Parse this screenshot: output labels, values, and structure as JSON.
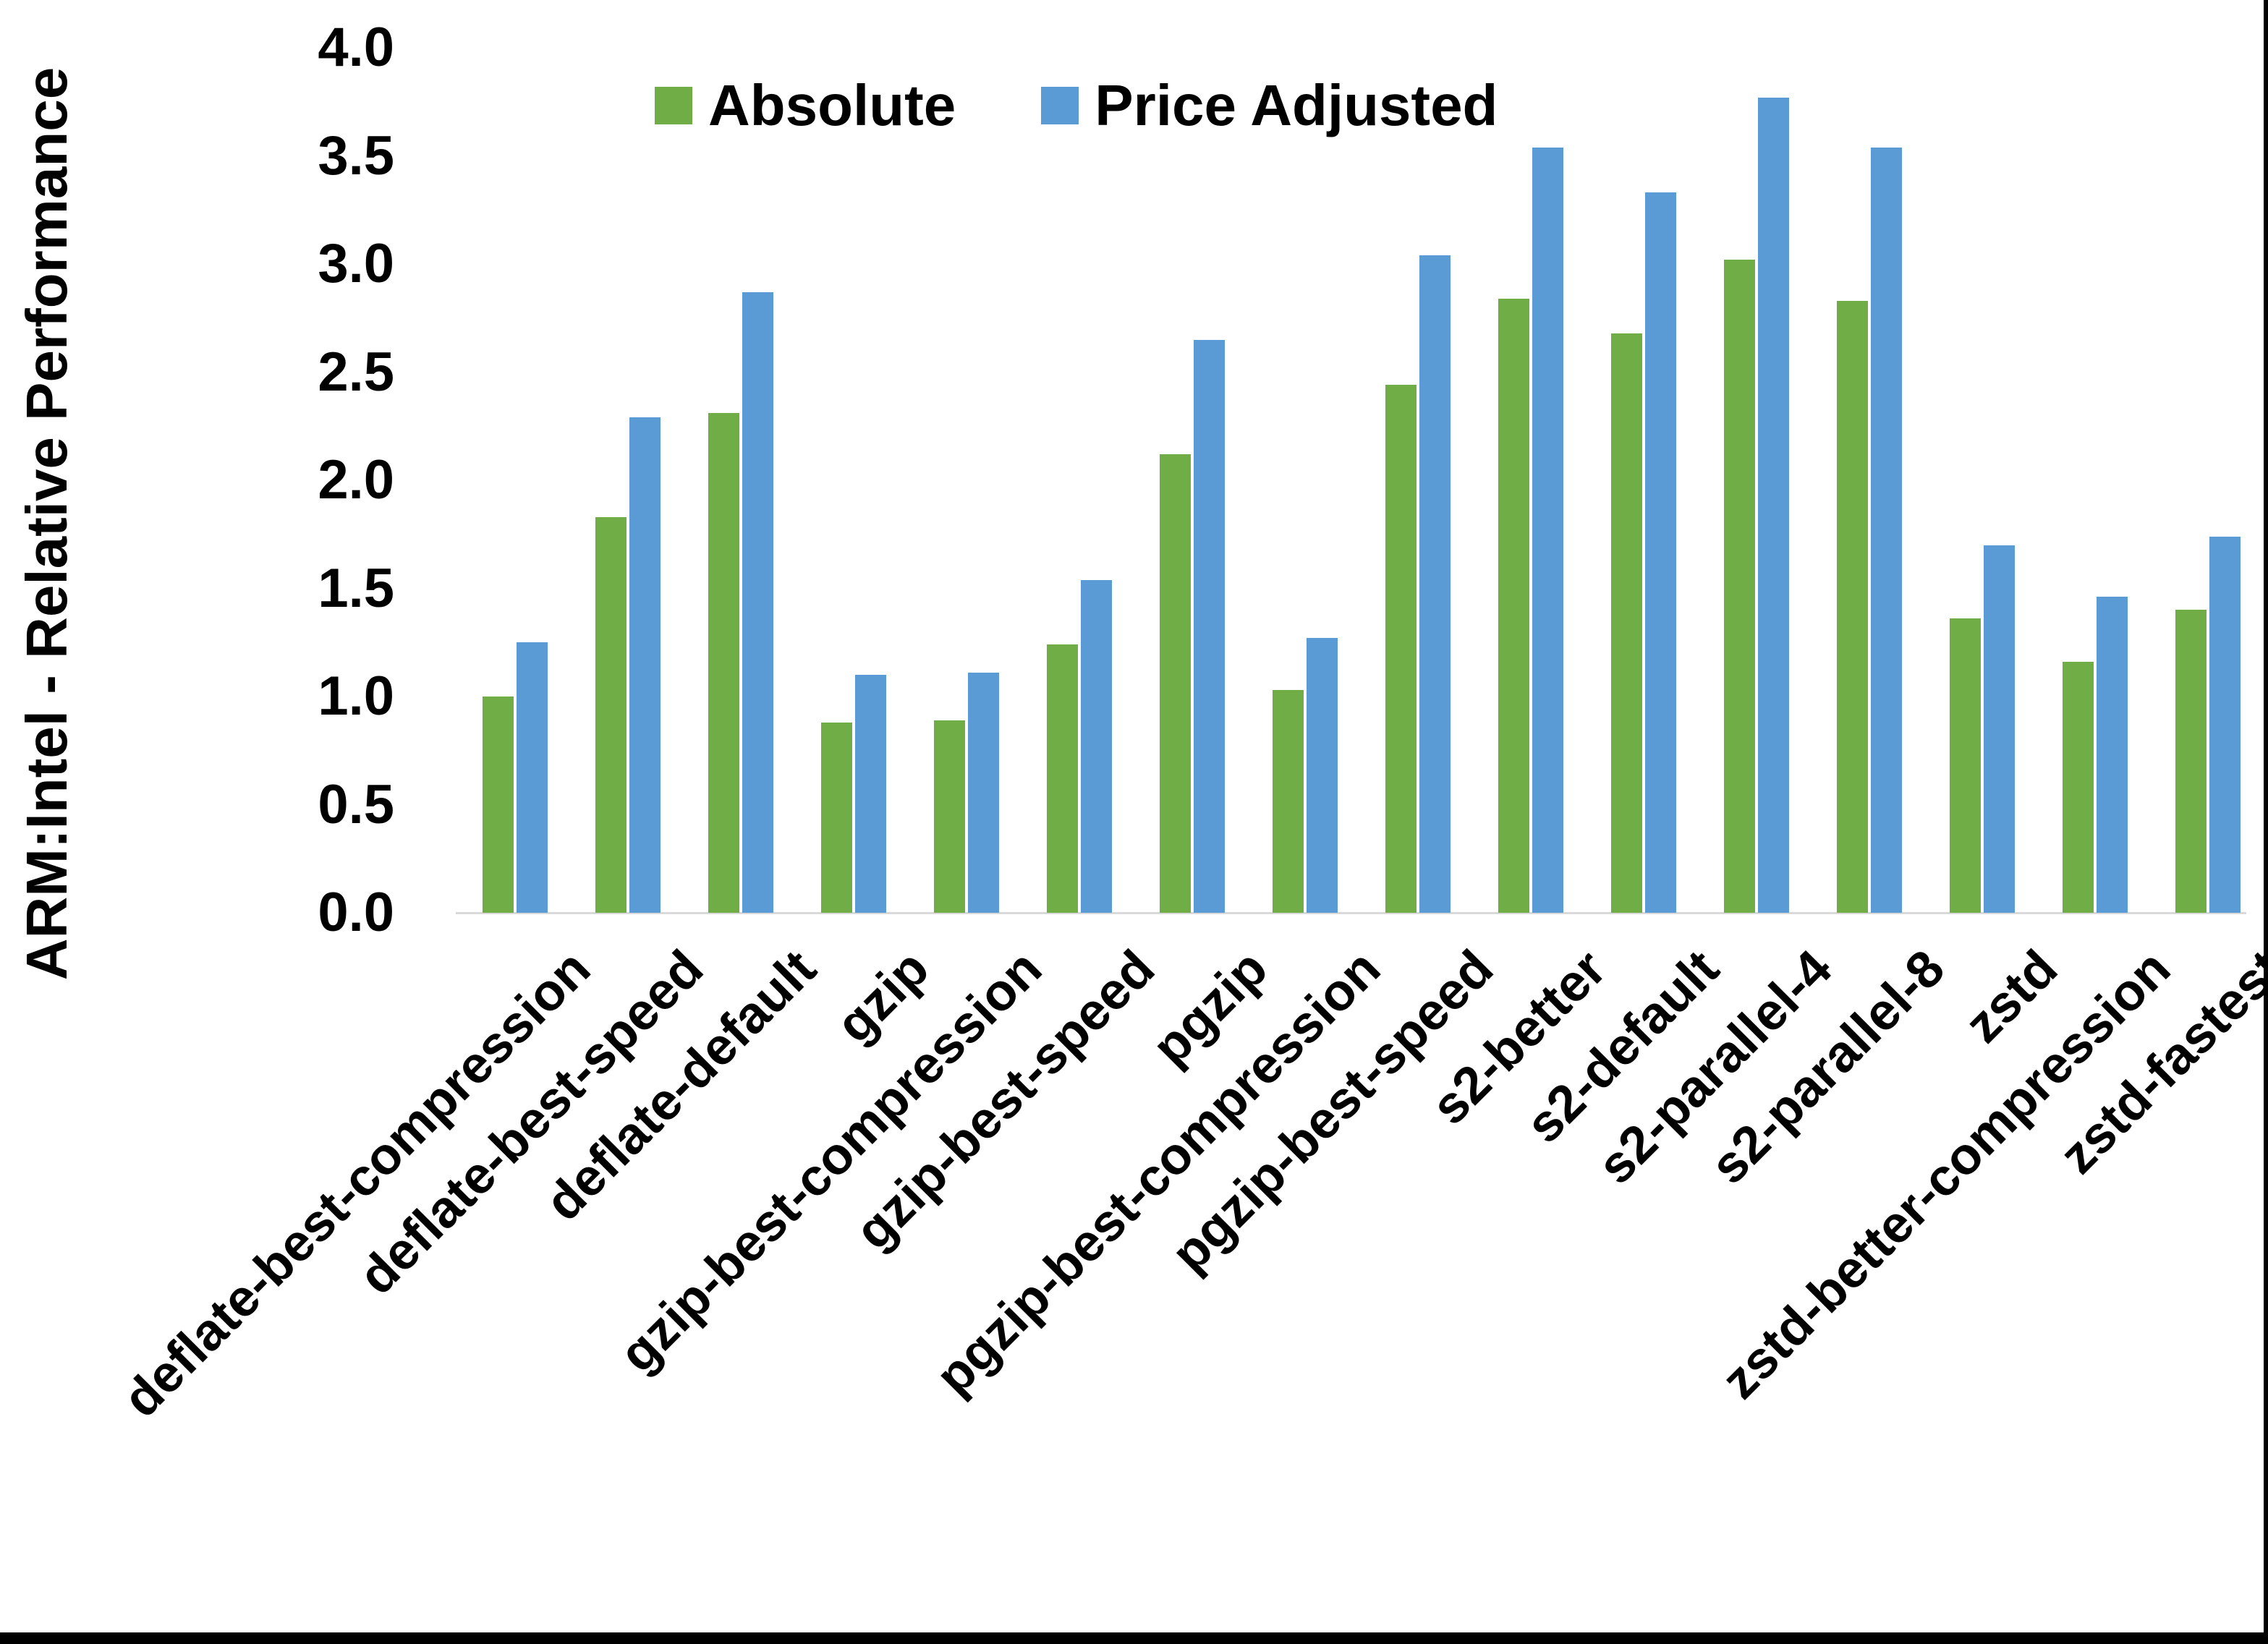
{
  "chart_data": {
    "type": "bar",
    "title": "",
    "xlabel": "",
    "ylabel": "ARM:Intel - Relative Performance",
    "ylim": [
      0.0,
      4.0
    ],
    "ytick_step": 0.5,
    "ytick_labels": [
      "4.0",
      "3.5",
      "3.0",
      "2.5",
      "2.0",
      "1.5",
      "1.0",
      "0.5",
      "0.0"
    ],
    "grid": false,
    "legend_position": "top-center",
    "categories": [
      "deflate-best-compression",
      "deflate-best-speed",
      "deflate-default",
      "gzip",
      "gzip-best-compression",
      "gzip-best-speed",
      "pgzip",
      "pgzip-best-compression",
      "pgzip-best-speed",
      "s2-better",
      "s2-default",
      "s2-parallel-4",
      "s2-parallel-8",
      "zstd",
      "zstd-better-compression",
      "zstd-fastest"
    ],
    "series": [
      {
        "name": "Absolute",
        "color": "#70AD47",
        "values": [
          1.0,
          1.83,
          2.31,
          0.88,
          0.89,
          1.24,
          2.12,
          1.03,
          2.44,
          2.84,
          2.68,
          3.02,
          2.83,
          1.36,
          1.16,
          1.4
        ]
      },
      {
        "name": "Price Adjusted",
        "color": "#5B9BD5",
        "values": [
          1.25,
          2.29,
          2.87,
          1.1,
          1.11,
          1.54,
          2.65,
          1.27,
          3.04,
          3.54,
          3.33,
          3.77,
          3.54,
          1.7,
          1.46,
          1.74
        ]
      }
    ]
  },
  "colors": {
    "background": "#ffffff",
    "axis_line": "#d9d9d9",
    "text": "#000000",
    "frame_border": "#000000"
  }
}
